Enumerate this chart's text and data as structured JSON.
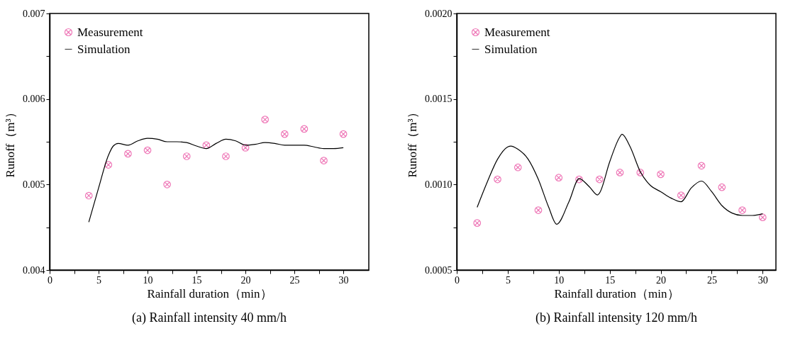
{
  "chart_data": [
    {
      "type": "scatter",
      "title": "(a) Rainfall intensity 40 mm/h",
      "xlabel": "Rainfall duration（min）",
      "ylabel": "Runoff（m³）",
      "legend": "top left",
      "grid": false,
      "xlim": [
        0,
        32.6
      ],
      "xticks": [
        0,
        {
          "value": 2.5,
          "label": null
        },
        5,
        {
          "value": 7.5,
          "label": null
        },
        10,
        {
          "value": 12.5,
          "label": null
        },
        15,
        {
          "value": 17.5,
          "label": null
        },
        20,
        {
          "value": 22.5,
          "label": null
        },
        25,
        {
          "value": 27.5,
          "label": null
        },
        30
      ],
      "ylim": [
        0.004,
        0.007
      ],
      "yticks": [
        0.004,
        {
          "value": 0.0045,
          "label": null
        },
        0.005,
        {
          "value": 0.0055,
          "label": null
        },
        0.006,
        {
          "value": 0.0065,
          "label": null
        },
        0.007
      ],
      "series": [
        {
          "name": "Measurement",
          "type": "scatter",
          "marker": "cross",
          "color": "#e8409a",
          "x": [
            4,
            6,
            8,
            10,
            12,
            14,
            16,
            18,
            20,
            22,
            24,
            26,
            28,
            30
          ],
          "values": [
            0.00487,
            0.00523,
            0.00536,
            0.0054,
            0.005,
            0.00533,
            0.00546,
            0.00533,
            0.00543,
            0.00576,
            0.00559,
            0.00565,
            0.00528,
            0.00559
          ]
        },
        {
          "name": "Simulation",
          "type": "line",
          "marker": "none",
          "color": "#000000",
          "x": [
            4,
            5,
            6,
            6.5,
            7,
            8,
            9,
            10,
            11,
            12,
            13,
            14,
            15,
            16,
            17,
            18,
            19,
            20,
            21,
            22,
            23,
            24,
            26,
            27,
            28,
            29,
            30
          ],
          "values": [
            0.00456,
            0.00496,
            0.00534,
            0.00545,
            0.00548,
            0.00546,
            0.00551,
            0.00554,
            0.00553,
            0.0055,
            0.0055,
            0.00549,
            0.00545,
            0.00542,
            0.00548,
            0.00553,
            0.00551,
            0.00546,
            0.00547,
            0.00549,
            0.00548,
            0.00546,
            0.00546,
            0.00544,
            0.00542,
            0.00542,
            0.00543
          ]
        }
      ]
    },
    {
      "type": "scatter",
      "title": "(b) Rainfall intensity 120 mm/h",
      "xlabel": "Rainfall duration（min）",
      "ylabel": "Runoff（m³）",
      "legend": "top left",
      "grid": false,
      "xlim": [
        0,
        31.3
      ],
      "xticks": [
        0,
        {
          "value": 2.5,
          "label": null
        },
        5,
        {
          "value": 7.5,
          "label": null
        },
        10,
        {
          "value": 12.5,
          "label": null
        },
        15,
        {
          "value": 17.5,
          "label": null
        },
        20,
        {
          "value": 22.5,
          "label": null
        },
        25,
        {
          "value": 27.5,
          "label": null
        },
        30
      ],
      "ylim": [
        0.0005,
        0.002
      ],
      "yticks": [
        0.0005,
        {
          "value": 0.00075,
          "label": null
        },
        {
          "value": 0.001,
          "label": "0.0010"
        },
        {
          "value": 0.00125,
          "label": null
        },
        0.0015,
        {
          "value": 0.00175,
          "label": null
        },
        {
          "value": 0.002,
          "label": "0.0020"
        }
      ],
      "series": [
        {
          "name": "Measurement",
          "type": "scatter",
          "marker": "cross",
          "color": "#e8409a",
          "x": [
            2,
            4,
            6,
            8,
            10,
            12,
            14,
            16,
            18,
            20,
            22,
            24,
            26,
            28,
            30
          ],
          "values": [
            0.000775,
            0.00103,
            0.0011,
            0.00085,
            0.00104,
            0.00103,
            0.00103,
            0.00107,
            0.00107,
            0.00106,
            0.000937,
            0.00111,
            0.000984,
            0.00085,
            0.000808
          ]
        },
        {
          "name": "Simulation",
          "type": "line",
          "marker": "none",
          "color": "#000000",
          "x": [
            2,
            3,
            4,
            5,
            5.3,
            6,
            7,
            8,
            9,
            9.8,
            11,
            12,
            13,
            13.8,
            14,
            15,
            16,
            16.2,
            17,
            18,
            19,
            20,
            21,
            22,
            23,
            24,
            25,
            26,
            27,
            28,
            29,
            30
          ],
          "values": [
            0.000867,
            0.001016,
            0.001148,
            0.00122,
            0.001225,
            0.001206,
            0.001148,
            0.00103,
            0.00087,
            0.000768,
            0.000899,
            0.001034,
            0.000987,
            0.000939,
            0.00095,
            0.001133,
            0.001279,
            0.001294,
            0.001221,
            0.001075,
            0.000994,
            0.000958,
            0.000921,
            0.000899,
            0.00098,
            0.00102,
            0.000958,
            0.000877,
            0.000833,
            0.000819,
            0.000819,
            0.000829
          ]
        }
      ]
    }
  ]
}
